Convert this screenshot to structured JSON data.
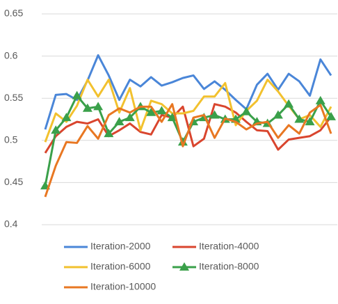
{
  "chart_data": {
    "type": "line",
    "ylim": [
      0.4,
      0.65
    ],
    "yticks": [
      0.4,
      0.45,
      0.5,
      0.55,
      0.6,
      0.65
    ],
    "grid": true,
    "legend": "bottom",
    "series": [
      {
        "name": "Iteration-2000",
        "color": "#4a86d8",
        "values": [
          0.513,
          0.554,
          0.555,
          0.548,
          0.571,
          0.601,
          0.577,
          0.548,
          0.572,
          0.564,
          0.575,
          0.565,
          0.569,
          0.574,
          0.577,
          0.561,
          0.57,
          0.56,
          0.548,
          0.537,
          0.566,
          0.579,
          0.56,
          0.579,
          0.57,
          0.553,
          0.596,
          0.577
        ]
      },
      {
        "name": "Iteration-4000",
        "color": "#d9452e",
        "values": [
          0.485,
          0.505,
          0.516,
          0.522,
          0.52,
          0.525,
          0.505,
          0.512,
          0.52,
          0.51,
          0.507,
          0.53,
          0.527,
          0.54,
          0.493,
          0.502,
          0.543,
          0.54,
          0.533,
          0.522,
          0.512,
          0.511,
          0.489,
          0.501,
          0.503,
          0.505,
          0.512,
          0.528
        ]
      },
      {
        "name": "Iteration-6000",
        "color": "#f2c12e",
        "values": [
          0.498,
          0.532,
          0.522,
          0.541,
          0.572,
          0.552,
          0.572,
          0.533,
          0.562,
          0.512,
          0.547,
          0.543,
          0.532,
          0.532,
          0.535,
          0.552,
          0.552,
          0.568,
          0.518,
          0.535,
          0.547,
          0.572,
          0.558,
          0.541,
          0.525,
          0.53,
          0.516,
          0.54
        ]
      },
      {
        "name": "Iteration-8000",
        "color": "#3aa04a",
        "marker": "triangle",
        "values": [
          0.446,
          0.512,
          0.527,
          0.553,
          0.538,
          0.54,
          0.508,
          0.522,
          0.527,
          0.54,
          0.533,
          0.535,
          0.527,
          0.498,
          0.522,
          0.527,
          0.53,
          0.525,
          0.525,
          0.534,
          0.522,
          0.52,
          0.53,
          0.543,
          0.525,
          0.522,
          0.547,
          0.528
        ]
      },
      {
        "name": "Iteration-10000",
        "color": "#e87722",
        "values": [
          0.433,
          0.47,
          0.498,
          0.497,
          0.517,
          0.502,
          0.53,
          0.538,
          0.533,
          0.54,
          0.54,
          0.522,
          0.543,
          0.493,
          0.527,
          0.53,
          0.503,
          0.526,
          0.522,
          0.513,
          0.52,
          0.522,
          0.503,
          0.518,
          0.508,
          0.533,
          0.542,
          0.508
        ]
      }
    ]
  }
}
